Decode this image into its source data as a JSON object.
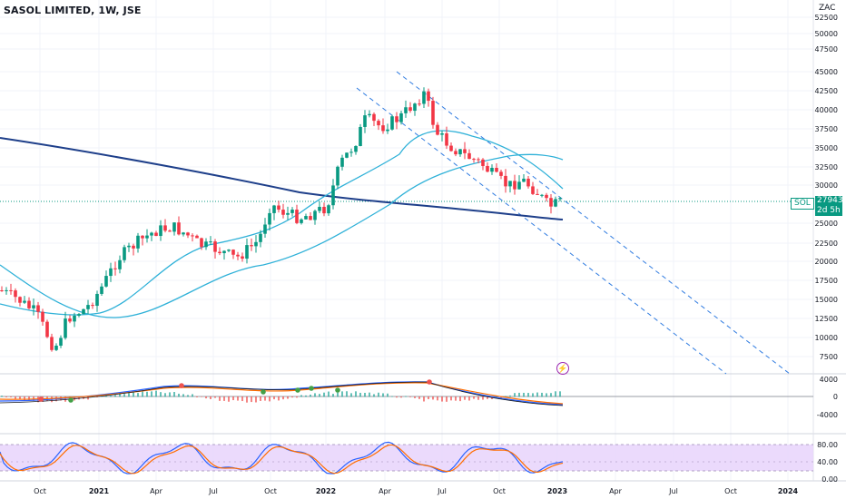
{
  "header": {
    "symbol_title": "SASOL LIMITED, 1W, JSE",
    "currency": "ZAC"
  },
  "price_axis": {
    "labels": [
      "52500",
      "50000",
      "47500",
      "45000",
      "42500",
      "40000",
      "37500",
      "35000",
      "32500",
      "30000",
      "25000",
      "22500",
      "20000",
      "17500",
      "15000",
      "12500",
      "10000",
      "7500"
    ]
  },
  "last_price": {
    "symbol": "SOL",
    "value": "27943",
    "countdown": "2d 5h"
  },
  "macd_axis": {
    "labels": [
      "4000",
      "0",
      "-4000"
    ]
  },
  "stoch_axis": {
    "labels": [
      "80.00",
      "40.00",
      "0.00"
    ]
  },
  "time_axis": {
    "labels": [
      "Oct",
      "2021",
      "Apr",
      "Jul",
      "Oct",
      "2022",
      "Apr",
      "Jul",
      "Oct",
      "2023",
      "Apr",
      "Jul",
      "Oct",
      "2024"
    ]
  },
  "colors": {
    "up": "#089981",
    "down": "#f23645",
    "ma_long": "#1e3f8a",
    "ma_short": "#2fb1d8",
    "channel": "#2f7be0",
    "macd_line": "#2962ff",
    "signal_line": "#ff6d00",
    "stoch_band": "#e7d3fb"
  },
  "icons": {
    "alert": "lightning-icon"
  }
}
